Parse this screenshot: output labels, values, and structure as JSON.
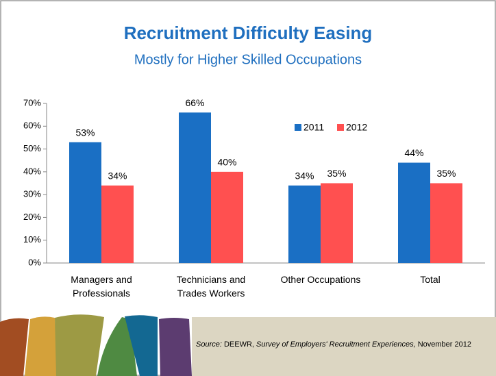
{
  "chart_data": {
    "type": "bar",
    "title": "Recruitment Difficulty Easing",
    "subtitle": "Mostly for Higher Skilled Occupations",
    "categories": [
      "Managers and Professionals",
      "Technicians and Trades Workers",
      "Other Occupations",
      "Total"
    ],
    "series": [
      {
        "name": "2011",
        "color": "#1a6fc4",
        "values": [
          53,
          66,
          34,
          44
        ],
        "value_labels": [
          "53%",
          "66%",
          "34%",
          "44%"
        ]
      },
      {
        "name": "2012",
        "color": "#ff5050",
        "values": [
          34,
          40,
          35,
          35
        ],
        "value_labels": [
          "34%",
          "40%",
          "35%",
          "35%"
        ]
      }
    ],
    "ylim": [
      0,
      70
    ],
    "yticks": [
      {
        "value": 0,
        "label": "0%"
      },
      {
        "value": 10,
        "label": "10%"
      },
      {
        "value": 20,
        "label": "20%"
      },
      {
        "value": 30,
        "label": "30%"
      },
      {
        "value": 40,
        "label": "40%"
      },
      {
        "value": 50,
        "label": "50%"
      },
      {
        "value": 60,
        "label": "60%"
      },
      {
        "value": 70,
        "label": "70%"
      }
    ],
    "grid": false,
    "legend": "top-right"
  },
  "footer": {
    "source_label": "Source:",
    "source_org": "DEEWR,",
    "source_title": "Survey of Employers' Recruitment Experiences,",
    "source_date": "November 2012"
  }
}
